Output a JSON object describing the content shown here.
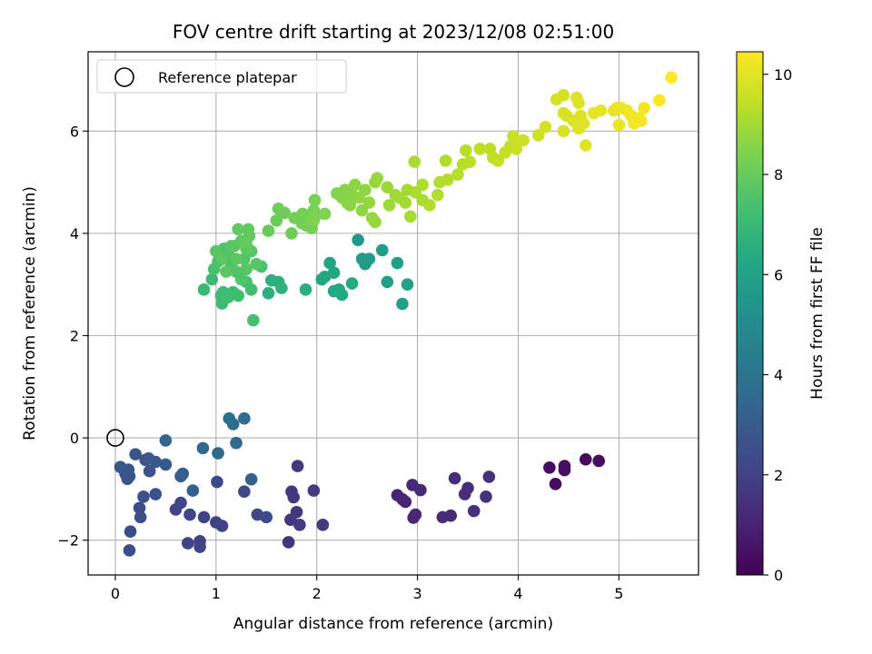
{
  "chart_data": {
    "type": "scatter",
    "title": "FOV centre drift starting at 2023/12/08 02:51:00",
    "xlabel": "Angular distance from reference (arcmin)",
    "ylabel": "Rotation from reference (arcmin)",
    "xlim": [
      -0.27,
      5.79
    ],
    "ylim": [
      -2.68,
      7.55
    ],
    "xticks": [
      0,
      1,
      2,
      3,
      4,
      5
    ],
    "yticks": [
      -2,
      0,
      2,
      4,
      6
    ],
    "grid": true,
    "legend": {
      "placement": "top-left",
      "entries": [
        "Reference platepar"
      ]
    },
    "reference_point": {
      "x": 0,
      "y": 0
    },
    "colorbar": {
      "label": "Hours from first FF file",
      "colormap": "viridis",
      "range": [
        0,
        10.45
      ],
      "ticks": [
        0,
        2,
        4,
        6,
        8,
        10
      ]
    },
    "points": [
      [
        4.31,
        -0.58,
        0.35
      ],
      [
        4.37,
        -0.9,
        0.37
      ],
      [
        4.46,
        -0.55,
        0.4
      ],
      [
        4.46,
        -0.63,
        0.42
      ],
      [
        4.67,
        -0.42,
        0.3
      ],
      [
        4.8,
        -0.45,
        0.33
      ],
      [
        2.8,
        -1.12,
        1.05
      ],
      [
        2.85,
        -1.2,
        1.08
      ],
      [
        2.88,
        -1.25,
        1.1
      ],
      [
        2.95,
        -0.92,
        1.15
      ],
      [
        2.96,
        -1.56,
        1.2
      ],
      [
        2.98,
        -1.5,
        1.18
      ],
      [
        3.03,
        -1.02,
        1.22
      ],
      [
        3.25,
        -1.55,
        1.3
      ],
      [
        3.33,
        -1.52,
        1.28
      ],
      [
        3.37,
        -0.79,
        1.35
      ],
      [
        3.47,
        -1.1,
        1.4
      ],
      [
        3.5,
        -0.98,
        1.42
      ],
      [
        3.56,
        -1.43,
        1.45
      ],
      [
        3.68,
        -1.15,
        1.5
      ],
      [
        3.71,
        -0.76,
        1.48
      ],
      [
        1.72,
        -2.04,
        1.6
      ],
      [
        1.74,
        -1.6,
        1.62
      ],
      [
        1.75,
        -1.05,
        1.65
      ],
      [
        1.77,
        -1.16,
        1.68
      ],
      [
        1.8,
        -1.45,
        1.7
      ],
      [
        1.81,
        -0.55,
        1.72
      ],
      [
        1.83,
        -1.7,
        1.75
      ],
      [
        1.97,
        -1.03,
        1.78
      ],
      [
        2.06,
        -1.7,
        1.8
      ],
      [
        1.06,
        -1.72,
        2.0
      ],
      [
        1.0,
        -1.65,
        2.02
      ],
      [
        0.88,
        -1.55,
        2.05
      ],
      [
        0.84,
        -2.13,
        2.1
      ],
      [
        0.84,
        -2.02,
        2.08
      ],
      [
        0.72,
        -2.06,
        2.12
      ],
      [
        0.65,
        -1.27,
        2.15
      ],
      [
        0.6,
        -1.4,
        2.18
      ],
      [
        0.74,
        -1.5,
        2.2
      ],
      [
        1.01,
        -0.86,
        2.25
      ],
      [
        1.41,
        -1.5,
        2.3
      ],
      [
        1.5,
        -1.55,
        2.35
      ],
      [
        1.28,
        -1.05,
        2.28
      ],
      [
        0.15,
        -1.83,
        2.4
      ],
      [
        0.14,
        -2.2,
        2.42
      ],
      [
        0.24,
        -1.37,
        2.45
      ],
      [
        0.25,
        -1.55,
        2.48
      ],
      [
        0.28,
        -1.15,
        2.5
      ],
      [
        0.34,
        -0.65,
        2.55
      ],
      [
        0.4,
        -1.1,
        2.6
      ],
      [
        0.3,
        -0.43,
        2.58
      ],
      [
        0.14,
        -0.75,
        2.65
      ],
      [
        0.12,
        -0.8,
        2.68
      ],
      [
        0.1,
        -0.7,
        2.7
      ],
      [
        0.05,
        -0.57,
        2.75
      ],
      [
        0.13,
        -0.62,
        2.78
      ],
      [
        0.2,
        -0.32,
        2.8
      ],
      [
        0.33,
        -0.4,
        2.85
      ],
      [
        0.4,
        -0.47,
        2.9
      ],
      [
        0.5,
        -0.52,
        2.95
      ],
      [
        0.67,
        -0.7,
        3.05
      ],
      [
        0.65,
        -0.75,
        3.1
      ],
      [
        0.77,
        -1.03,
        3.15
      ],
      [
        1.35,
        -0.81,
        3.2
      ],
      [
        0.5,
        -0.05,
        3.4
      ],
      [
        0.87,
        -0.2,
        3.5
      ],
      [
        1.02,
        -0.3,
        3.55
      ],
      [
        1.2,
        -0.1,
        3.6
      ],
      [
        1.13,
        0.38,
        3.7
      ],
      [
        1.17,
        0.27,
        3.72
      ],
      [
        1.28,
        0.38,
        3.75
      ],
      [
        2.41,
        3.87,
        5.6
      ],
      [
        2.45,
        3.5,
        5.65
      ],
      [
        2.48,
        3.4,
        5.7
      ],
      [
        2.52,
        3.5,
        5.75
      ],
      [
        2.65,
        3.67,
        5.8
      ],
      [
        2.7,
        3.05,
        5.85
      ],
      [
        2.8,
        3.42,
        5.9
      ],
      [
        2.85,
        2.62,
        5.95
      ],
      [
        2.9,
        3.0,
        6.0
      ],
      [
        2.17,
        3.23,
        6.1
      ],
      [
        2.13,
        3.42,
        6.15
      ],
      [
        2.05,
        3.1,
        6.2
      ],
      [
        2.08,
        3.15,
        6.22
      ],
      [
        2.25,
        2.8,
        6.25
      ],
      [
        2.22,
        2.9,
        6.3
      ],
      [
        2.35,
        3.02,
        6.35
      ],
      [
        2.17,
        2.87,
        6.28
      ],
      [
        1.55,
        3.08,
        6.6
      ],
      [
        1.62,
        3.05,
        6.65
      ],
      [
        1.65,
        2.93,
        6.7
      ],
      [
        1.52,
        2.83,
        6.62
      ],
      [
        1.89,
        2.9,
        6.55
      ],
      [
        0.88,
        2.9,
        7.0
      ],
      [
        0.96,
        3.1,
        7.05
      ],
      [
        1.06,
        2.63,
        7.1
      ],
      [
        1.07,
        2.85,
        7.12
      ],
      [
        1.05,
        2.78,
        7.15
      ],
      [
        1.12,
        2.75,
        7.18
      ],
      [
        1.17,
        2.85,
        7.2
      ],
      [
        1.22,
        2.78,
        7.22
      ],
      [
        1.3,
        3.05,
        7.25
      ],
      [
        1.35,
        2.9,
        7.28
      ],
      [
        1.37,
        2.3,
        7.3
      ],
      [
        1.45,
        3.35,
        7.35
      ],
      [
        0.98,
        3.3,
        7.4
      ],
      [
        1.02,
        3.45,
        7.42
      ],
      [
        1.05,
        3.55,
        7.45
      ],
      [
        1.08,
        3.7,
        7.48
      ],
      [
        1.12,
        3.6,
        7.5
      ],
      [
        1.15,
        3.4,
        7.52
      ],
      [
        1.18,
        3.75,
        7.55
      ],
      [
        1.2,
        3.25,
        7.58
      ],
      [
        1.25,
        3.1,
        7.6
      ],
      [
        1.28,
        3.5,
        7.62
      ],
      [
        1.3,
        3.3,
        7.65
      ],
      [
        1.35,
        3.65,
        7.68
      ],
      [
        1.4,
        3.4,
        7.7
      ],
      [
        1.0,
        3.65,
        7.72
      ],
      [
        1.1,
        3.25,
        7.75
      ],
      [
        1.15,
        3.75,
        7.78
      ],
      [
        1.2,
        3.5,
        7.8
      ],
      [
        1.25,
        3.85,
        7.82
      ],
      [
        1.3,
        3.7,
        7.85
      ],
      [
        1.22,
        4.08,
        7.88
      ],
      [
        1.32,
        4.08,
        7.9
      ],
      [
        1.33,
        3.95,
        7.92
      ],
      [
        1.3,
        3.8,
        7.94
      ],
      [
        1.06,
        3.5,
        7.8
      ],
      [
        1.52,
        4.05,
        8.0
      ],
      [
        1.6,
        4.25,
        8.05
      ],
      [
        1.62,
        4.48,
        8.1
      ],
      [
        1.68,
        4.4,
        8.12
      ],
      [
        1.75,
        4.0,
        8.15
      ],
      [
        1.78,
        4.3,
        8.18
      ],
      [
        1.85,
        4.2,
        8.2
      ],
      [
        1.86,
        4.38,
        8.22
      ],
      [
        1.9,
        4.15,
        8.25
      ],
      [
        1.92,
        4.3,
        8.28
      ],
      [
        1.95,
        4.1,
        8.3
      ],
      [
        1.97,
        4.45,
        8.32
      ],
      [
        2.0,
        4.37,
        8.35
      ],
      [
        1.98,
        4.65,
        8.38
      ],
      [
        2.08,
        4.38,
        8.4
      ],
      [
        1.97,
        4.25,
        8.42
      ],
      [
        2.2,
        4.78,
        8.5
      ],
      [
        2.25,
        4.7,
        8.52
      ],
      [
        2.28,
        4.85,
        8.55
      ],
      [
        2.3,
        4.6,
        8.58
      ],
      [
        2.33,
        4.55,
        8.6
      ],
      [
        2.35,
        4.75,
        8.62
      ],
      [
        2.38,
        4.95,
        8.65
      ],
      [
        2.42,
        4.7,
        8.68
      ],
      [
        2.45,
        4.45,
        8.7
      ],
      [
        2.48,
        4.85,
        8.72
      ],
      [
        2.52,
        4.6,
        8.75
      ],
      [
        2.55,
        4.3,
        8.78
      ],
      [
        2.58,
        4.22,
        8.8
      ],
      [
        2.58,
        5.0,
        8.82
      ],
      [
        2.6,
        5.08,
        8.85
      ],
      [
        2.7,
        4.9,
        8.9
      ],
      [
        2.72,
        4.55,
        8.92
      ],
      [
        2.78,
        4.75,
        8.95
      ],
      [
        2.82,
        4.7,
        8.98
      ],
      [
        2.88,
        4.6,
        9.0
      ],
      [
        2.9,
        4.85,
        9.02
      ],
      [
        2.93,
        4.33,
        9.05
      ],
      [
        2.97,
        5.4,
        9.08
      ],
      [
        2.98,
        4.8,
        9.1
      ],
      [
        3.05,
        4.65,
        9.12
      ],
      [
        3.05,
        4.95,
        9.15
      ],
      [
        3.12,
        4.55,
        9.18
      ],
      [
        3.2,
        4.75,
        9.2
      ],
      [
        3.22,
        5.0,
        9.22
      ],
      [
        3.28,
        5.42,
        9.25
      ],
      [
        3.3,
        5.05,
        9.28
      ],
      [
        3.4,
        5.15,
        9.3
      ],
      [
        3.45,
        5.35,
        9.32
      ],
      [
        3.48,
        5.62,
        9.35
      ],
      [
        3.52,
        5.4,
        9.38
      ],
      [
        3.62,
        5.65,
        9.4
      ],
      [
        3.72,
        5.65,
        9.42
      ],
      [
        3.75,
        5.48,
        9.45
      ],
      [
        3.8,
        5.42,
        9.48
      ],
      [
        3.87,
        5.58,
        9.5
      ],
      [
        3.92,
        5.7,
        9.52
      ],
      [
        3.95,
        5.9,
        9.55
      ],
      [
        3.97,
        5.75,
        9.58
      ],
      [
        3.98,
        5.65,
        9.6
      ],
      [
        4.05,
        5.82,
        9.62
      ],
      [
        4.2,
        5.92,
        9.7
      ],
      [
        4.27,
        6.08,
        9.72
      ],
      [
        4.38,
        6.62,
        9.75
      ],
      [
        4.45,
        6.7,
        9.78
      ],
      [
        4.45,
        6.35,
        9.8
      ],
      [
        4.48,
        6.3,
        9.82
      ],
      [
        4.45,
        6.0,
        9.85
      ],
      [
        4.55,
        6.2,
        9.88
      ],
      [
        4.58,
        6.65,
        9.9
      ],
      [
        4.6,
        6.55,
        9.92
      ],
      [
        4.6,
        6.05,
        9.94
      ],
      [
        4.62,
        6.3,
        9.96
      ],
      [
        4.65,
        6.15,
        9.98
      ],
      [
        4.67,
        5.72,
        10.0
      ],
      [
        4.75,
        6.35,
        10.05
      ],
      [
        4.82,
        6.4,
        10.08
      ],
      [
        4.95,
        6.4,
        10.12
      ],
      [
        4.98,
        6.45,
        10.15
      ],
      [
        5.0,
        6.12,
        10.18
      ],
      [
        5.02,
        6.45,
        10.2
      ],
      [
        5.08,
        6.4,
        10.22
      ],
      [
        5.12,
        6.3,
        10.25
      ],
      [
        5.15,
        6.15,
        10.28
      ],
      [
        5.22,
        6.2,
        10.3
      ],
      [
        5.25,
        6.45,
        10.32
      ],
      [
        5.2,
        6.25,
        10.35
      ],
      [
        5.4,
        6.6,
        10.38
      ],
      [
        5.52,
        7.05,
        10.42
      ]
    ]
  }
}
